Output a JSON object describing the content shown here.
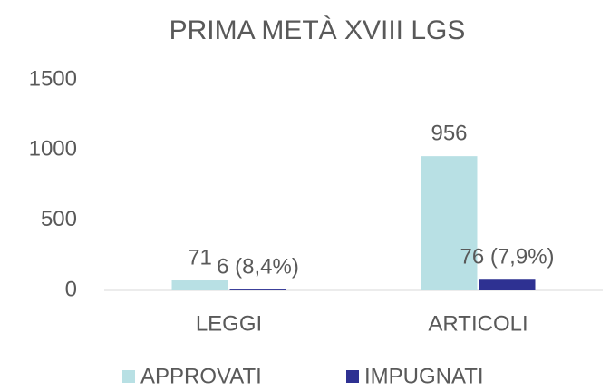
{
  "chart_data": {
    "type": "bar",
    "title": "PRIMA METÀ XVIII LGS",
    "categories": [
      "LEGGI",
      "ARTICOLI"
    ],
    "series": [
      {
        "name": "APPROVATI",
        "color": "#b8e0e4",
        "values": [
          71,
          956
        ]
      },
      {
        "name": "IMPUGNATI",
        "color": "#2e3192",
        "values": [
          6,
          76
        ],
        "value_labels": [
          "6 (8,4%)",
          "76 (7,9%)"
        ]
      }
    ],
    "ylim": [
      0,
      1500
    ],
    "yticks": [
      0,
      500,
      1000,
      1500
    ],
    "grid": false,
    "legend": "bottom"
  }
}
